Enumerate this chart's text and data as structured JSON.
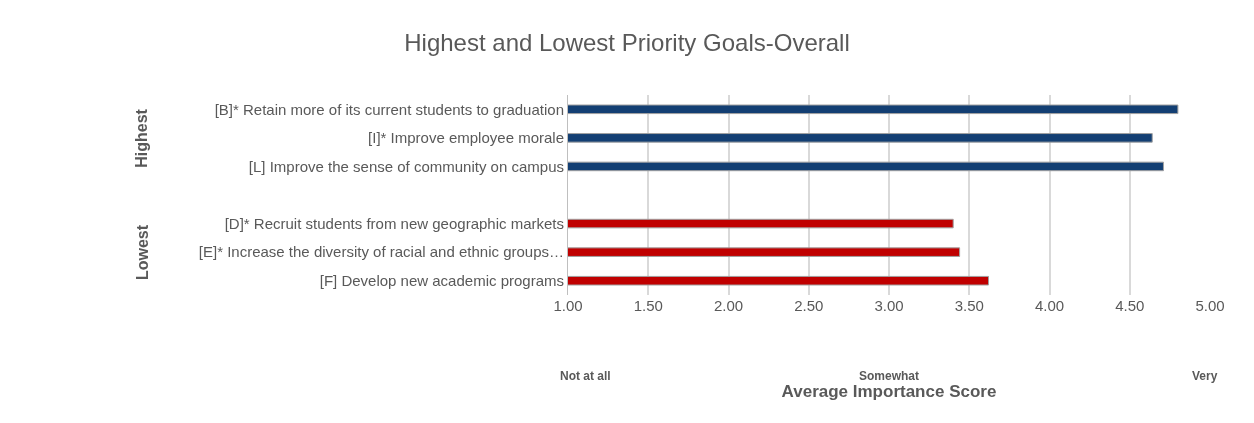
{
  "chart_data": {
    "type": "bar",
    "orientation": "horizontal",
    "title": "Highest and Lowest Priority Goals-Overall",
    "xlabel": "Average Importance Score",
    "categories": [
      "[B]* Retain more of its current students to graduation",
      "[I]* Improve employee morale",
      "[L] Improve the sense of community on campus",
      null,
      "[D]* Recruit students from new geographic markets",
      "[E]* Increase the diversity of racial and ethnic groups…",
      "[F] Develop new academic programs"
    ],
    "values": [
      4.8,
      4.64,
      4.71,
      null,
      3.4,
      3.44,
      3.62
    ],
    "colors": [
      "#133f73",
      "#133f73",
      "#133f73",
      "#c00000",
      "#c00000",
      "#c00000",
      "#c00000"
    ],
    "xlim": [
      1,
      5
    ],
    "xticks": [
      {
        "value": 1,
        "label": "1.00"
      },
      {
        "value": 1.5,
        "label": "1.50"
      },
      {
        "value": 2,
        "label": "2.00"
      },
      {
        "value": 2.5,
        "label": "2.50"
      },
      {
        "value": 3,
        "label": "3.00"
      },
      {
        "value": 3.5,
        "label": "3.50"
      },
      {
        "value": 4,
        "label": "4.00"
      },
      {
        "value": 4.5,
        "label": "4.50"
      },
      {
        "value": 5,
        "label": "5.00"
      }
    ],
    "grid": "x",
    "legend": false,
    "annotations": [
      "Highest",
      "Lowest",
      "Not at all",
      "Somewhat",
      "Very"
    ]
  }
}
